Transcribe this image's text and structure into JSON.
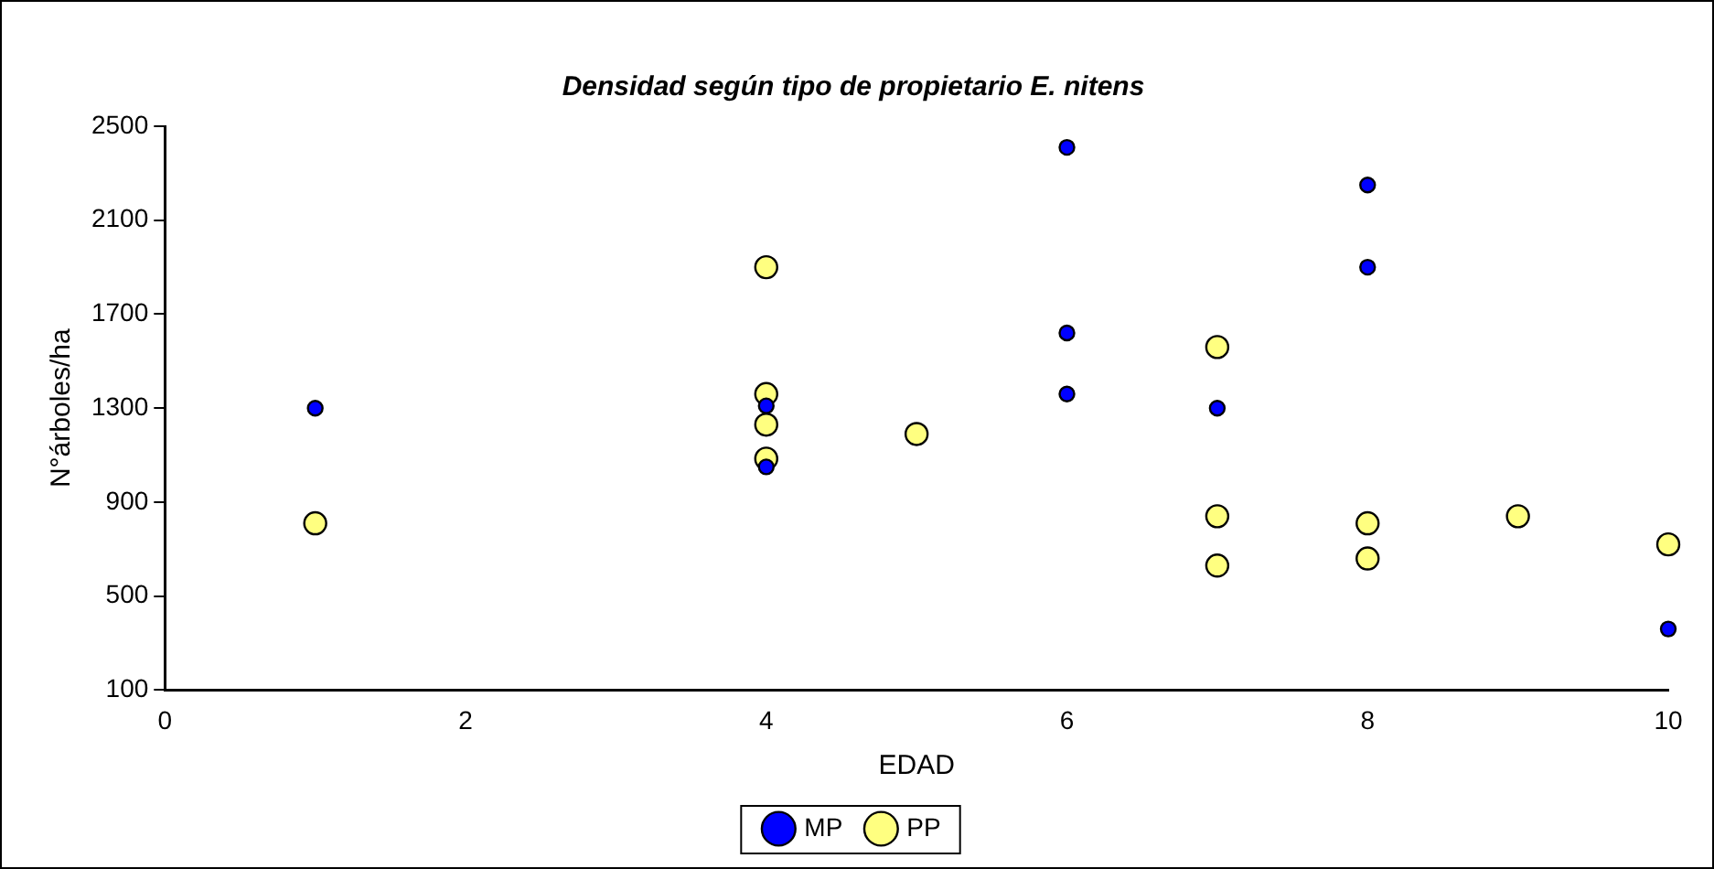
{
  "chart_data": {
    "type": "scatter",
    "title": "Densidad según tipo de propietario E. nitens",
    "xlabel": "EDAD",
    "ylabel": "N°árboles/ha",
    "series": [
      {
        "name": "MP",
        "color": "#0000ff",
        "x": [
          1,
          4,
          4,
          6,
          6,
          6,
          7,
          8,
          8,
          10
        ],
        "values": [
          1300,
          1310,
          1050,
          2410,
          1620,
          1360,
          1300,
          2250,
          1900,
          360
        ]
      },
      {
        "name": "PP",
        "color": "#ffff80",
        "x": [
          1,
          4,
          4,
          4,
          4,
          5,
          7,
          7,
          7,
          8,
          8,
          9,
          10
        ],
        "values": [
          810,
          1900,
          1360,
          1230,
          1085,
          1190,
          1560,
          840,
          630,
          810,
          660,
          840,
          720
        ]
      }
    ],
    "xlim": [
      0,
      10
    ],
    "xticks": [
      0,
      2,
      4,
      6,
      8,
      10
    ],
    "ylim": [
      100,
      2500
    ],
    "yticks": [
      100,
      500,
      900,
      1300,
      1700,
      2100,
      2500
    ],
    "grid": false,
    "legend": "bottom",
    "marker": "circle"
  }
}
